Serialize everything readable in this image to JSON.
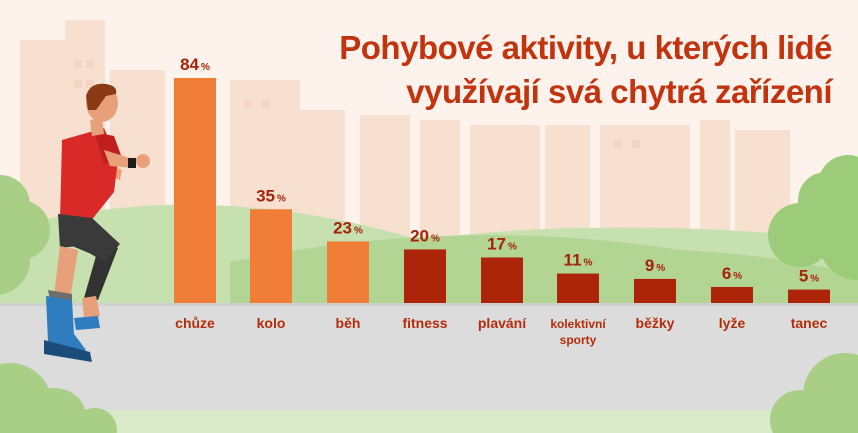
{
  "chart_data": {
    "type": "bar",
    "title_lines": [
      "Pohybové aktivity, u kterých lidé",
      "využívají svá chytrá zařízení"
    ],
    "categories": [
      "chůze",
      "kolo",
      "běh",
      "fitness",
      "plavání",
      "kolektivní sporty",
      "běžky",
      "lyže",
      "tanec"
    ],
    "category_lines": [
      [
        "chůze"
      ],
      [
        "kolo"
      ],
      [
        "běh"
      ],
      [
        "fitness"
      ],
      [
        "plavání"
      ],
      [
        "kolektivní",
        "sporty"
      ],
      [
        "běžky"
      ],
      [
        "lyže"
      ],
      [
        "tanec"
      ]
    ],
    "values": [
      84,
      35,
      23,
      20,
      17,
      11,
      9,
      6,
      5
    ],
    "value_labels": [
      "84",
      "35",
      "23",
      "20",
      "17",
      "11",
      "9",
      "6",
      "5"
    ],
    "unit": "%",
    "bar_colors": [
      "#f07e38",
      "#f07e38",
      "#f07e38",
      "#ad2509",
      "#ad2509",
      "#ad2509",
      "#ad2509",
      "#ad2509",
      "#ad2509"
    ],
    "ylim": [
      0,
      84
    ],
    "axis_shown": false,
    "grid": false
  },
  "colors": {
    "title": "#c2340f",
    "category_label": "#b52c0a",
    "value_label": "#a62208",
    "background": "#fdf3ec",
    "road": "#dcdcdc",
    "grass": "#a9cf86"
  },
  "illustration": {
    "figure": "runner-figure",
    "background": "city-park-background"
  }
}
